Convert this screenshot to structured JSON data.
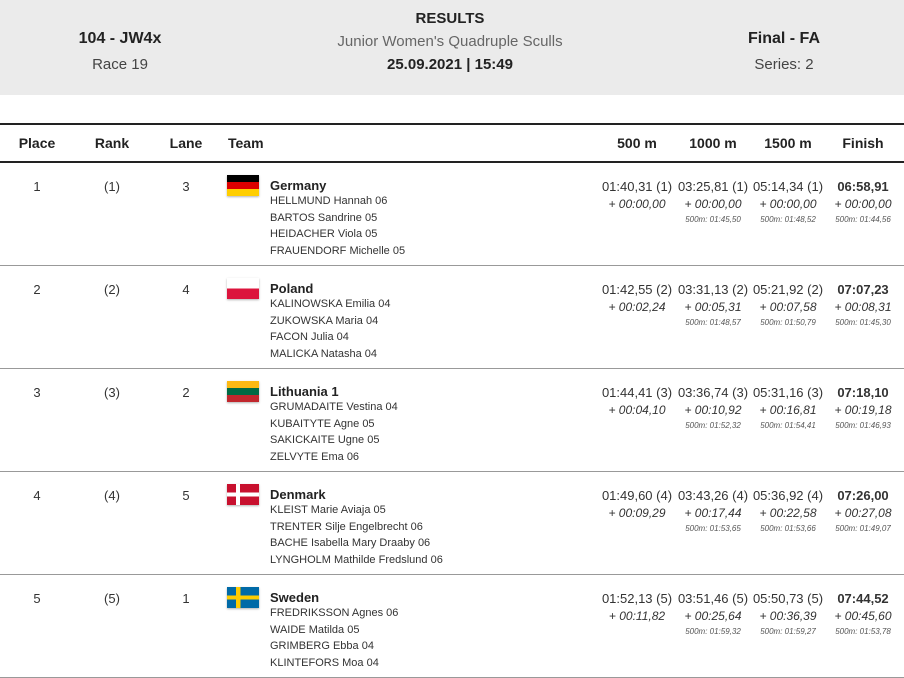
{
  "header": {
    "event_code": "104 - JW4x",
    "race": "Race 19",
    "title": "RESULTS",
    "event_name": "Junior Women's Quadruple Sculls",
    "date_time": "25.09.2021 | 15:49",
    "phase": "Final - FA",
    "series": "Series: 2"
  },
  "columns": {
    "place": "Place",
    "rank": "Rank",
    "lane": "Lane",
    "team": "Team",
    "s500": "500 m",
    "s1000": "1000 m",
    "s1500": "1500 m",
    "finish": "Finish"
  },
  "rows": [
    {
      "place": "1",
      "rank": "(1)",
      "lane": "3",
      "country": "Germany",
      "flag": "germany-flag-icon",
      "crew": [
        "HELLMUND  Hannah 06",
        "BARTOS  Sandrine 05",
        "HEIDACHER  Viola 05",
        "FRAUENDORF  Michelle 05"
      ],
      "t500": "01:40,31 (1)",
      "d500": "+ 00:00,00",
      "t1000": "03:25,81 (1)",
      "d1000": "+ 00:00,00",
      "s1000": "500m: 01:45,50",
      "t1500": "05:14,34 (1)",
      "d1500": "+ 00:00,00",
      "s1500": "500m: 01:48,52",
      "tfin": "06:58,91",
      "dfin": "+ 00:00,00",
      "sfin": "500m: 01:44,56"
    },
    {
      "place": "2",
      "rank": "(2)",
      "lane": "4",
      "country": "Poland",
      "flag": "poland-flag-icon",
      "crew": [
        "KALINOWSKA  Emilia 04",
        "ZUKOWSKA  Maria 04",
        "FACON  Julia 04",
        "MALICKA  Natasha 04"
      ],
      "t500": "01:42,55 (2)",
      "d500": "+ 00:02,24",
      "t1000": "03:31,13 (2)",
      "d1000": "+ 00:05,31",
      "s1000": "500m: 01:48,57",
      "t1500": "05:21,92 (2)",
      "d1500": "+ 00:07,58",
      "s1500": "500m: 01:50,79",
      "tfin": "07:07,23",
      "dfin": "+ 00:08,31",
      "sfin": "500m: 01:45,30"
    },
    {
      "place": "3",
      "rank": "(3)",
      "lane": "2",
      "country": "Lithuania 1",
      "flag": "lithuania-flag-icon",
      "crew": [
        "GRUMADAITE  Vestina 04",
        "KUBAITYTE  Agne 05",
        "SAKICKAITE  Ugne 05",
        "ZELVYTE  Ema 06"
      ],
      "t500": "01:44,41 (3)",
      "d500": "+ 00:04,10",
      "t1000": "03:36,74 (3)",
      "d1000": "+ 00:10,92",
      "s1000": "500m: 01:52,32",
      "t1500": "05:31,16 (3)",
      "d1500": "+ 00:16,81",
      "s1500": "500m: 01:54,41",
      "tfin": "07:18,10",
      "dfin": "+ 00:19,18",
      "sfin": "500m: 01:46,93"
    },
    {
      "place": "4",
      "rank": "(4)",
      "lane": "5",
      "country": "Denmark",
      "flag": "denmark-flag-icon",
      "crew": [
        "KLEIST  Marie Aviaja 05",
        "TRENTER  Silje Engelbrecht 06",
        "BACHE  Isabella Mary Draaby 06",
        "LYNGHOLM  Mathilde Fredslund 06"
      ],
      "t500": "01:49,60 (4)",
      "d500": "+ 00:09,29",
      "t1000": "03:43,26 (4)",
      "d1000": "+ 00:17,44",
      "s1000": "500m: 01:53,65",
      "t1500": "05:36,92 (4)",
      "d1500": "+ 00:22,58",
      "s1500": "500m: 01:53,66",
      "tfin": "07:26,00",
      "dfin": "+ 00:27,08",
      "sfin": "500m: 01:49,07"
    },
    {
      "place": "5",
      "rank": "(5)",
      "lane": "1",
      "country": "Sweden",
      "flag": "sweden-flag-icon",
      "crew": [
        "FREDRIKSSON  Agnes 06",
        "WAIDE  Matilda 05",
        "GRIMBERG  Ebba 04",
        "KLINTEFORS  Moa 04"
      ],
      "t500": "01:52,13 (5)",
      "d500": "+ 00:11,82",
      "t1000": "03:51,46 (5)",
      "d1000": "+ 00:25,64",
      "s1000": "500m: 01:59,32",
      "t1500": "05:50,73 (5)",
      "d1500": "+ 00:36,39",
      "s1500": "500m: 01:59,27",
      "tfin": "07:44,52",
      "dfin": "+ 00:45,60",
      "sfin": "500m: 01:53,78"
    }
  ]
}
